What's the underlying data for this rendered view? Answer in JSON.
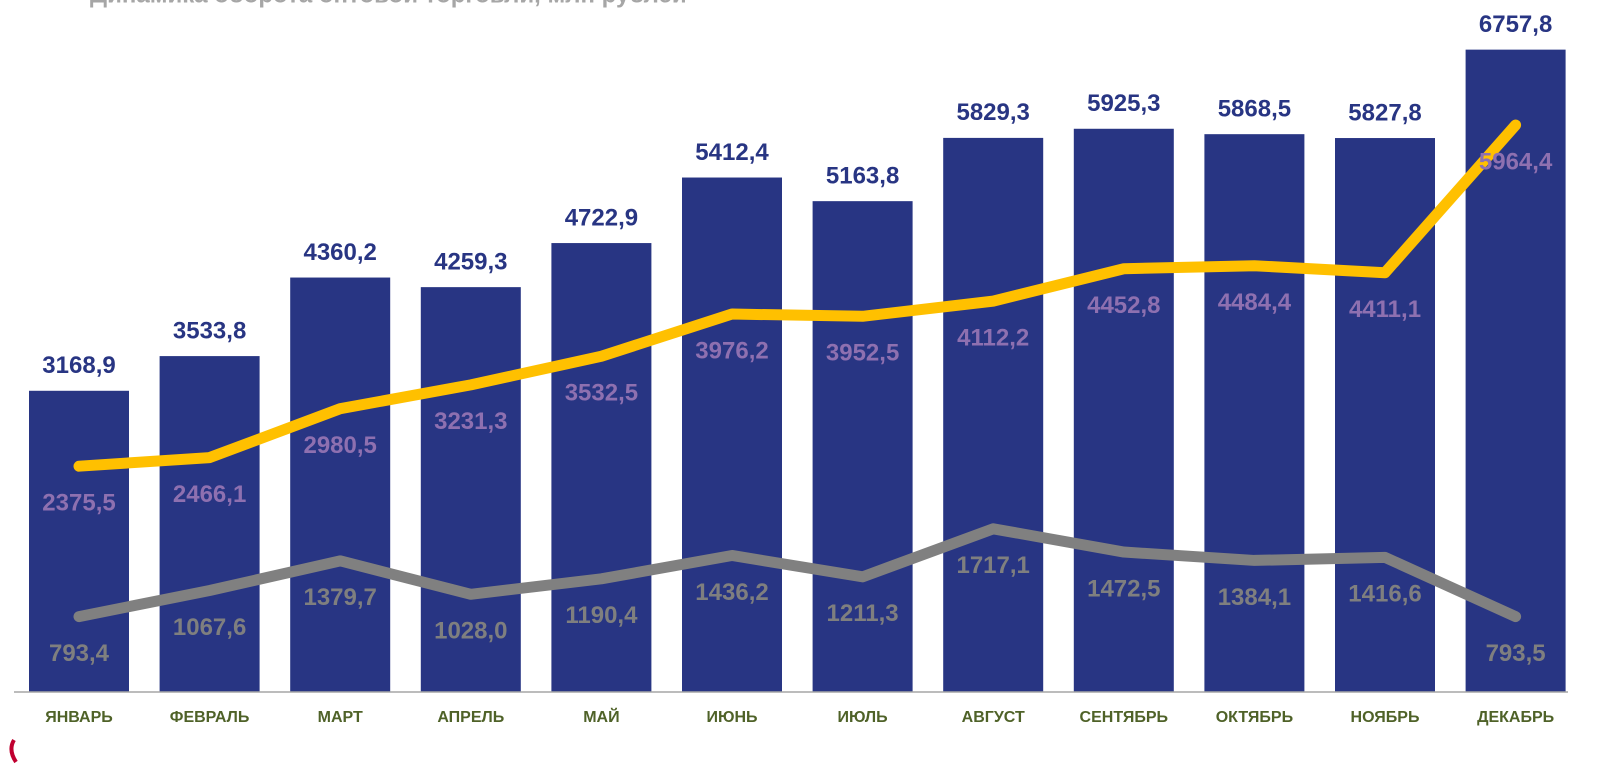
{
  "chart_data": {
    "type": "bar_line",
    "title": "Динамика оборота оптовой торговли, млн рублей",
    "categories": [
      "ЯНВАРЬ",
      "ФЕВРАЛЬ",
      "МАРТ",
      "АПРЕЛЬ",
      "МАЙ",
      "ИЮНЬ",
      "ИЮЛЬ",
      "АВГУСТ",
      "СЕНТЯБРЬ",
      "ОКТЯБРЬ",
      "НОЯБРЬ",
      "ДЕКАБРЬ"
    ],
    "ylim": [
      0,
      7280
    ],
    "series": [
      {
        "type": "bar",
        "color": "#283583",
        "label_color": "#283583",
        "values": [
          3168.9,
          3533.8,
          4360.2,
          4259.3,
          4722.9,
          5412.4,
          5163.8,
          5829.3,
          5925.3,
          5868.5,
          5827.8,
          6757.8
        ],
        "value_labels": [
          "3168,9",
          "3533,8",
          "4360,2",
          "4259,3",
          "4722,9",
          "5412,4",
          "5163,8",
          "5829,3",
          "5925,3",
          "5868,5",
          "5827,8",
          "6757,8"
        ]
      },
      {
        "type": "line",
        "color": "#ffc000",
        "label_color": "#8e70b0",
        "values": [
          2375.5,
          2466.1,
          2980.5,
          3231.3,
          3532.5,
          3976.2,
          3952.5,
          4112.2,
          4452.8,
          4484.4,
          4411.1,
          5964.4
        ],
        "value_labels": [
          "2375,5",
          "2466,1",
          "2980,5",
          "3231,3",
          "3532,5",
          "3976,2",
          "3952,5",
          "4112,2",
          "4452,8",
          "4484,4",
          "4411,1",
          "5964,4"
        ]
      },
      {
        "type": "line",
        "color": "#808080",
        "label_color": "#7f7f7f",
        "values": [
          793.4,
          1067.6,
          1379.7,
          1028.0,
          1190.4,
          1436.2,
          1211.3,
          1717.1,
          1472.5,
          1384.1,
          1416.6,
          793.5
        ],
        "value_labels": [
          "793,4",
          "1067,6",
          "1379,7",
          "1028,0",
          "1190,4",
          "1436,2",
          "1211,3",
          "1717,1",
          "1472,5",
          "1384,1",
          "1416,6",
          "793,5"
        ]
      }
    ]
  }
}
